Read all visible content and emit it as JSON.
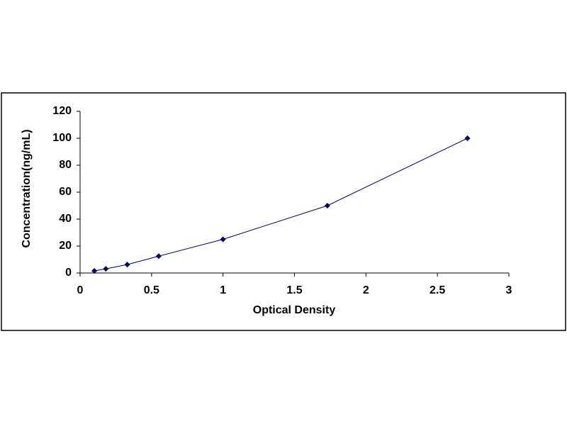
{
  "chart_data": {
    "type": "scatter",
    "x_label": "Optical Density",
    "y_label": "Concentration(ng/mL)",
    "series": [
      {
        "color": "#000066",
        "x": [
          0.1,
          0.18,
          0.33,
          0.55,
          1.0,
          1.73,
          2.71
        ],
        "values": [
          1.56,
          3.12,
          6.25,
          12.5,
          25,
          50,
          100
        ]
      }
    ],
    "xlim": [
      0,
      3
    ],
    "xticks": [
      0,
      0.5,
      1,
      1.5,
      2,
      2.5,
      3
    ],
    "ylim": [
      0,
      120
    ],
    "yticks": [
      0,
      20,
      40,
      60,
      80,
      100,
      120
    ],
    "grid": false,
    "connect": true
  }
}
